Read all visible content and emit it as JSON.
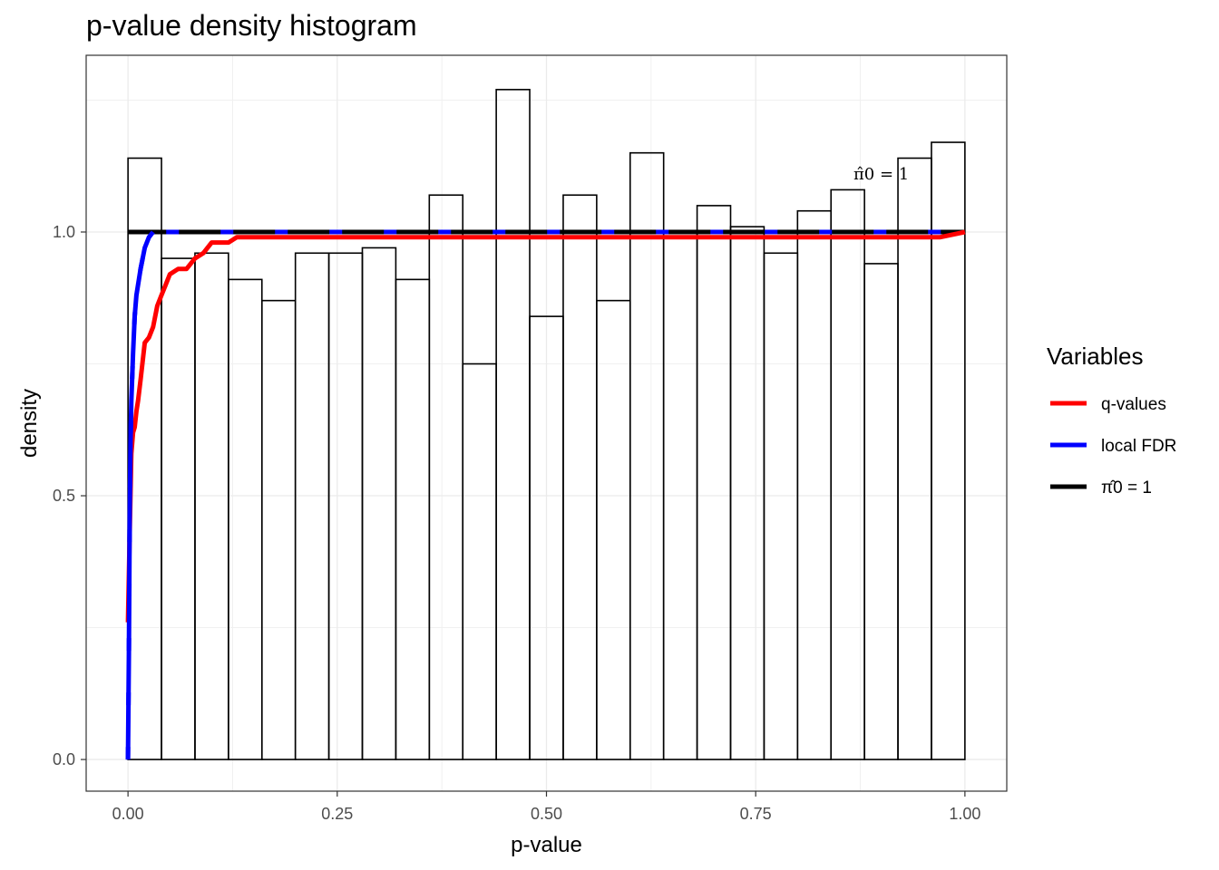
{
  "chart_data": {
    "type": "bar",
    "title": "p-value density histogram",
    "xlabel": "p-value",
    "ylabel": "density",
    "xlim": [
      -0.05,
      1.05
    ],
    "ylim": [
      -0.06,
      1.335
    ],
    "x_ticks": [
      0.0,
      0.25,
      0.5,
      0.75,
      1.0
    ],
    "x_tick_labels": [
      "0.00",
      "0.25",
      "0.50",
      "0.75",
      "1.00"
    ],
    "y_ticks": [
      0.0,
      0.5,
      1.0
    ],
    "y_tick_labels": [
      "0.0",
      "0.5",
      "1.0"
    ],
    "grid": true,
    "histogram": {
      "bin_edges": [
        0.0,
        0.04,
        0.08,
        0.12,
        0.16,
        0.2,
        0.24,
        0.28,
        0.32,
        0.36,
        0.4,
        0.44,
        0.48,
        0.52,
        0.56,
        0.6,
        0.64,
        0.68,
        0.72,
        0.76,
        0.8,
        0.84,
        0.88,
        0.92,
        0.96,
        1.0
      ],
      "densities": [
        1.14,
        0.95,
        0.96,
        0.91,
        0.87,
        0.96,
        0.96,
        0.97,
        0.91,
        1.07,
        0.75,
        1.27,
        0.84,
        1.07,
        0.87,
        1.15,
        1.0,
        1.05,
        1.01,
        0.96,
        1.04,
        1.08,
        0.94,
        1.14,
        1.17
      ]
    },
    "series": [
      {
        "name": "q-values",
        "color": "#ff0000",
        "x": [
          0.0,
          0.002,
          0.004,
          0.006,
          0.008,
          0.01,
          0.012,
          0.015,
          0.02,
          0.025,
          0.03,
          0.035,
          0.04,
          0.045,
          0.05,
          0.06,
          0.07,
          0.08,
          0.09,
          0.1,
          0.12,
          0.13,
          0.2,
          0.5,
          0.9,
          0.97,
          1.0
        ],
        "y": [
          0.26,
          0.43,
          0.58,
          0.62,
          0.63,
          0.66,
          0.68,
          0.72,
          0.79,
          0.8,
          0.82,
          0.86,
          0.88,
          0.9,
          0.92,
          0.93,
          0.93,
          0.95,
          0.96,
          0.98,
          0.98,
          0.99,
          0.99,
          0.99,
          0.99,
          0.99,
          1.0
        ]
      },
      {
        "name": "local FDR",
        "color": "#0000ff",
        "dashed": true,
        "x": [
          0.0,
          0.001,
          0.002,
          0.003,
          0.004,
          0.006,
          0.008,
          0.01,
          0.015,
          0.02,
          0.025,
          0.03,
          0.04,
          1.0
        ],
        "y": [
          0.0,
          0.2,
          0.46,
          0.6,
          0.68,
          0.77,
          0.84,
          0.88,
          0.93,
          0.97,
          0.99,
          1.0,
          1.0,
          1.0
        ]
      },
      {
        "name": "π̂0 = 1",
        "color": "#000000",
        "x": [
          0.0,
          1.0
        ],
        "y": [
          1.0,
          1.0
        ]
      }
    ],
    "legend": {
      "title": "Variables",
      "position": "right",
      "items": [
        {
          "label": "q-values",
          "color": "#ff0000"
        },
        {
          "label": "local FDR",
          "color": "#0000ff"
        },
        {
          "label": "π̂0 = 1",
          "color": "#000000"
        }
      ]
    },
    "annotations": [
      {
        "text": "π̂0 = 1",
        "x": 0.9,
        "y": 1.1
      }
    ]
  }
}
